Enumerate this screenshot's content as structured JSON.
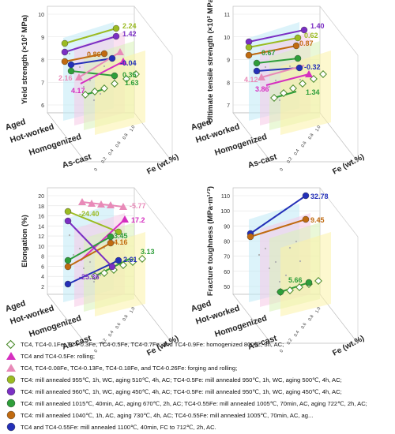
{
  "chart_data": [
    {
      "type": "scatter",
      "panel": "yield-strength",
      "zlabel": "Yield strength (×10² MPa)",
      "z_ticks": [
        "6",
        "7",
        "8",
        "9",
        "10"
      ],
      "zlim": [
        5.5,
        10.5
      ],
      "y_categories": [
        "Aged",
        "Hot-worked",
        "Homogenized",
        "As-cast"
      ],
      "xlabel": "Fe (wt.%)",
      "x_ticks": [
        "0",
        "0.2",
        "0.4",
        "0.6",
        "0.8",
        "1.0"
      ],
      "annotations": [
        {
          "text": "2.24",
          "color": "#9bbb22"
        },
        {
          "text": "1.42",
          "color": "#7b2fc4"
        },
        {
          "text": "0.86",
          "color": "#c06a10"
        },
        {
          "text": "0.35",
          "color": "#2e9e3a"
        },
        {
          "text": "-0.04",
          "color": "#2430b8"
        },
        {
          "text": "2.16",
          "color": "#e88ab8"
        },
        {
          "text": "4.17",
          "color": "#d62fc0"
        },
        {
          "text": "1.63",
          "color": "#2e9e3a"
        }
      ]
    },
    {
      "type": "scatter",
      "panel": "ultimate-tensile-strength",
      "zlabel": "Ultimate tensile strength (×10² MPa)",
      "z_ticks": [
        "7",
        "8",
        "9",
        "10",
        "11"
      ],
      "zlim": [
        6.5,
        11.5
      ],
      "y_categories": [
        "Aged",
        "Hot-worked",
        "Homogenized",
        "As-cast"
      ],
      "xlabel": "Fe (wt.%)",
      "x_ticks": [
        "0",
        "0.2",
        "0.4",
        "0.6",
        "0.8",
        "1.0"
      ],
      "annotations": [
        {
          "text": "1.40",
          "color": "#7b2fc4"
        },
        {
          "text": "0.62",
          "color": "#9bbb22"
        },
        {
          "text": "0.87",
          "color": "#c06a10"
        },
        {
          "text": "0.67",
          "color": "#2e9e3a"
        },
        {
          "text": "-0.32",
          "color": "#2430b8"
        },
        {
          "text": "4.12",
          "color": "#e88ab8"
        },
        {
          "text": "3.86",
          "color": "#d62fc0"
        },
        {
          "text": "1.34",
          "color": "#2e9e3a"
        }
      ]
    },
    {
      "type": "scatter",
      "panel": "elongation",
      "zlabel": "Elongation (%)",
      "z_ticks": [
        "2",
        "4",
        "6",
        "8",
        "10",
        "12",
        "14",
        "16",
        "18",
        "20"
      ],
      "zlim": [
        1,
        21
      ],
      "y_categories": [
        "Aged",
        "Hot-worked",
        "Homogenized",
        "As-cast"
      ],
      "xlabel": "Fe (wt.%)",
      "x_ticks": [
        "0",
        "0.2",
        "0.4",
        "0.6",
        "0.8",
        "1.0"
      ],
      "annotations": [
        {
          "text": "-24.40",
          "color": "#9bbb22"
        },
        {
          "text": "-5.77",
          "color": "#e88ab8"
        },
        {
          "text": "17.2",
          "color": "#d62fc0"
        },
        {
          "text": "3.45",
          "color": "#2e9e3a"
        },
        {
          "text": "4.16",
          "color": "#c06a10"
        },
        {
          "text": "3.13",
          "color": "#2e9e3a"
        },
        {
          "text": "2.61",
          "color": "#2430b8"
        },
        {
          "text": "-25.36",
          "color": "#7b2fc4"
        }
      ]
    },
    {
      "type": "scatter",
      "panel": "fracture-toughness",
      "zlabel": "Fracture toughness (MPa·m¹ᐟ²)",
      "z_ticks": [
        "50",
        "60",
        "70",
        "80",
        "90",
        "100",
        "110"
      ],
      "zlim": [
        45,
        115
      ],
      "y_categories": [
        "Aged",
        "Hot-worked",
        "Homogenized",
        "As-cast"
      ],
      "xlabel": "Fe (wt.%)",
      "x_ticks": [
        "0",
        "0.2",
        "0.4",
        "0.6",
        "0.8",
        "1.0"
      ],
      "annotations": [
        {
          "text": "32.78",
          "color": "#2430b8"
        },
        {
          "text": "9.45",
          "color": "#c06a10"
        },
        {
          "text": "5.66",
          "color": "#2e9e3a"
        }
      ]
    }
  ],
  "legend": [
    {
      "marker": "diamond-open",
      "color": "#4a8a2a",
      "text": "TC4, TC4-0.1Fe, TC4-0.3Fe, TC4-0.5Fe, TC4-0.7Fe, and TC4-0.9Fe: homogenized 800℃, 3h, AC;"
    },
    {
      "marker": "triangle",
      "color": "#d62fc0",
      "text": "TC4 and TC4-0.5Fe: rolling;"
    },
    {
      "marker": "triangle",
      "color": "#e88ab8",
      "text": "TC4, TC4-0.08Fe, TC4-0.13Fe, TC4-0.18Fe, and TC4-0.26Fe: forging and rolling;"
    },
    {
      "marker": "circle",
      "color": "#9bbb22",
      "text": "TC4: mill annealed 955℃, 1h, WC, aging 510℃, 4h, AC; TC4-0.5Fe: mill annealed 950℃, 1h, WC, aging 500℃, 4h, AC;"
    },
    {
      "marker": "circle",
      "color": "#7b2fc4",
      "text": "TC4: mill annealed 960℃, 1h, WC, aging 450℃, 4h, AC; TC4-0.5Fe: mill annealed 950℃, 1h, WC, aging 450℃, 4h, AC;"
    },
    {
      "marker": "circle",
      "color": "#2e9e3a",
      "text": "TC4: mill annealed 1015℃, 40min, AC, aging 670℃, 2h, AC; TC4-0.55Fe: mill annealed 1005℃, 70min, AC, aging 722℃, 2h, AC;"
    },
    {
      "marker": "circle",
      "color": "#c06a10",
      "text": "TC4: mill annealed 1040℃, 1h, AC, aging 730℃, 4h, AC; TC4-0.55Fe: mill annealed 1005℃, 70min, AC, ag..."
    },
    {
      "marker": "circle",
      "color": "#2430b8",
      "text": "TC4 and TC4-0.55Fe: mill annealed 1100℃, 40min, FC to 712℃, 2h, AC."
    }
  ]
}
